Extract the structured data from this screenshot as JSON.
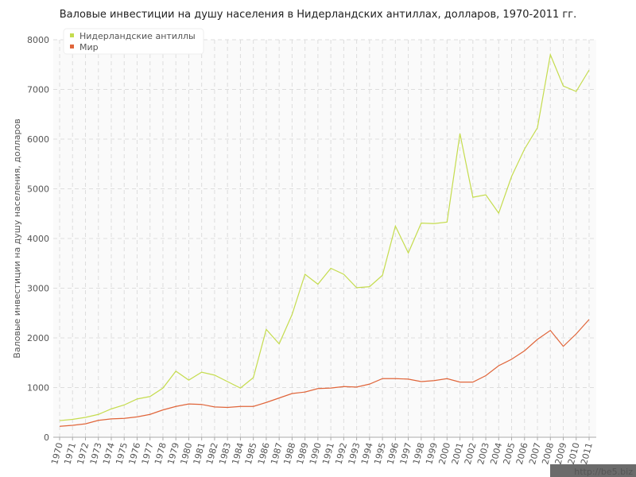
{
  "chart_data": {
    "type": "line",
    "title": "Валовые инвестиции на душу населения в Нидерландских антиллах, долларов, 1970-2011 гг.",
    "y_label": "Валовые инвестиции на душу населения, долларов",
    "categories": [
      "1970",
      "1971",
      "1972",
      "1973",
      "1974",
      "1975",
      "1976",
      "1977",
      "1978",
      "1979",
      "1980",
      "1981",
      "1982",
      "1983",
      "1984",
      "1985",
      "1986",
      "1987",
      "1988",
      "1989",
      "1990",
      "1991",
      "1992",
      "1993",
      "1994",
      "1995",
      "1996",
      "1997",
      "1998",
      "1999",
      "2000",
      "2001",
      "2002",
      "2003",
      "2004",
      "2005",
      "2006",
      "2007",
      "2008",
      "2009",
      "2010",
      "2011"
    ],
    "series": [
      {
        "name": "Нидерландские антиллы",
        "color": "#c5dc4e",
        "values": [
          335,
          360,
          400,
          460,
          570,
          650,
          770,
          820,
          990,
          1330,
          1150,
          1310,
          1250,
          1120,
          990,
          1200,
          2170,
          1880,
          2470,
          3280,
          3080,
          3400,
          3280,
          3010,
          3030,
          3260,
          4250,
          3710,
          4310,
          4300,
          4330,
          6110,
          4830,
          4880,
          4510,
          5250,
          5800,
          6230,
          7700,
          7070,
          6960,
          7390
        ]
      },
      {
        "name": "Мир",
        "color": "#e0653a",
        "values": [
          220,
          240,
          270,
          340,
          370,
          380,
          410,
          460,
          550,
          620,
          670,
          660,
          610,
          600,
          620,
          620,
          700,
          790,
          880,
          910,
          980,
          990,
          1020,
          1010,
          1070,
          1180,
          1180,
          1170,
          1120,
          1140,
          1180,
          1110,
          1110,
          1240,
          1440,
          1570,
          1740,
          1970,
          2150,
          1830,
          2080,
          2370
        ]
      }
    ],
    "ylim": [
      0,
      8000
    ],
    "yticks": [
      0,
      1000,
      2000,
      3000,
      4000,
      5000,
      6000,
      7000,
      8000
    ],
    "grid": true,
    "legend": "top-left",
    "watermark": "http://be5.biz"
  }
}
